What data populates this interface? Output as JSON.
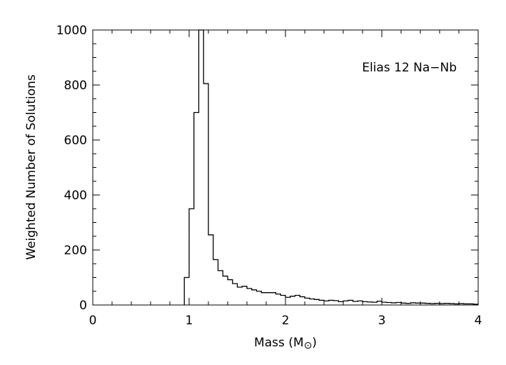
{
  "chart_data": {
    "type": "histogram",
    "xlabel": "Mass (M",
    "xlabel_unit_symbol": "⊙",
    "xlabel_close": ")",
    "ylabel": "Weighted Number of Solutions",
    "annotation": "Elias 12 Na−Nb",
    "xlim": [
      0,
      4
    ],
    "ylim": [
      0,
      1000
    ],
    "x_ticks": [
      0,
      1,
      2,
      3,
      4
    ],
    "x_tick_labels": [
      "0",
      "1",
      "2",
      "3",
      "4"
    ],
    "y_ticks": [
      0,
      200,
      400,
      600,
      800,
      1000
    ],
    "y_tick_labels": [
      "0",
      "200",
      "400",
      "600",
      "800",
      "1000"
    ],
    "bin_width": 0.05,
    "bin_start": 0.95,
    "values": [
      100,
      350,
      700,
      1000,
      805,
      255,
      165,
      125,
      105,
      92,
      78,
      65,
      68,
      60,
      55,
      50,
      45,
      45,
      45,
      40,
      35,
      28,
      32,
      35,
      30,
      25,
      22,
      20,
      17,
      15,
      17,
      16,
      12,
      15,
      17,
      13,
      15,
      12,
      11,
      10,
      14,
      10,
      9,
      8,
      9,
      7,
      6,
      8,
      7,
      7,
      6,
      5,
      6,
      5,
      6,
      5,
      4,
      5,
      4,
      4,
      3
    ],
    "grid": false,
    "color": "#000000"
  }
}
